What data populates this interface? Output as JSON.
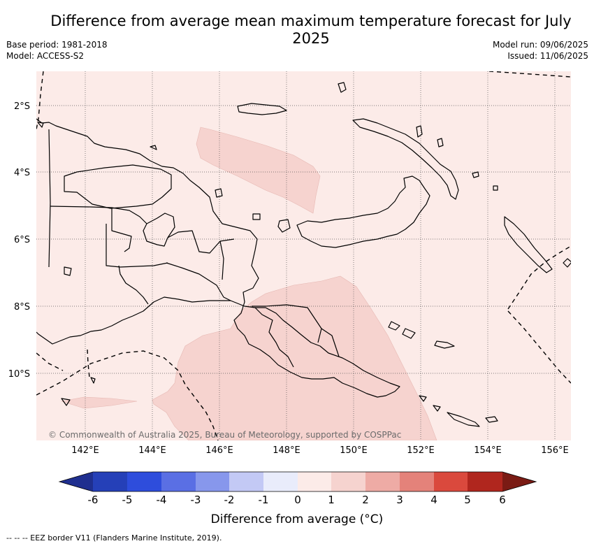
{
  "title": "Difference from average mean maximum temperature forecast for July 2025",
  "meta": {
    "base_period": "Base period: 1981-2018",
    "model": "Model: ACCESS-S2",
    "model_run": "Model run: 09/06/2025",
    "issued": "Issued: 11/06/2025"
  },
  "axes": {
    "lat_ticks": [
      "2°S",
      "4°S",
      "6°S",
      "8°S",
      "10°S"
    ],
    "lon_ticks": [
      "142°E",
      "144°E",
      "146°E",
      "148°E",
      "150°E",
      "152°E",
      "154°E",
      "156°E"
    ]
  },
  "copyright": "© Commonwealth of Australia 2025, Bureau of Meteorology, supported by COSPPac",
  "colorbar": {
    "labels": [
      "-6",
      "-5",
      "-4",
      "-3",
      "-2",
      "-1",
      "0",
      "1",
      "2",
      "3",
      "4",
      "5",
      "6"
    ],
    "colors": [
      "#1f2f8f",
      "#2540b8",
      "#2e4ddc",
      "#5a6fe4",
      "#8797ec",
      "#c3c9f5",
      "#e9ecfb",
      "#fcebe8",
      "#f6d3cf",
      "#eeaba5",
      "#e4827a",
      "#da493d",
      "#b0261e",
      "#7a1b14"
    ],
    "title": "Difference from average (°C)"
  },
  "map_colors": {
    "background_category": "#fcebe8",
    "warmer_category": "#f6d3cf"
  },
  "footnote": "-- -- -- EEZ border V11 (Flanders Marine Institute, 2019)."
}
